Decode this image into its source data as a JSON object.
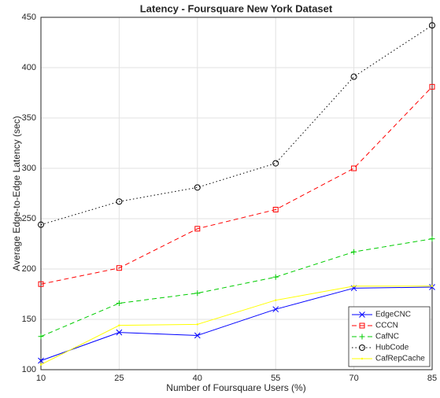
{
  "chart_data": {
    "type": "line",
    "title": "Latency - Foursquare New York Dataset",
    "x_label": "Number of Foursquare Users (%)",
    "y_label": "Average Edge-to-Edge Latency (sec)",
    "x": [
      10,
      25,
      40,
      55,
      70,
      85
    ],
    "series": [
      {
        "name": "EdgeCNC",
        "color": "#0000ff",
        "dash": "solid",
        "marker": "x",
        "values": [
          109,
          137,
          134,
          160,
          181,
          182
        ]
      },
      {
        "name": "CCCN",
        "color": "#ff0000",
        "dash": "dashed",
        "marker": "square",
        "values": [
          185,
          201,
          240,
          259,
          300,
          381
        ]
      },
      {
        "name": "CafNC",
        "color": "#00cc00",
        "dash": "dashed",
        "marker": "plus",
        "values": [
          133,
          166,
          176,
          192,
          217,
          230
        ]
      },
      {
        "name": "HubCode",
        "color": "#000000",
        "dash": "dotted",
        "marker": "circle",
        "values": [
          244,
          267,
          281,
          305,
          391,
          442
        ]
      },
      {
        "name": "CafRepCache",
        "color": "#ffff00",
        "dash": "solid",
        "marker": "dot",
        "values": [
          105,
          144,
          145,
          169,
          183,
          183
        ]
      }
    ],
    "xlim": [
      10,
      85
    ],
    "xticks": [
      10,
      25,
      40,
      55,
      70,
      85
    ],
    "ylim": [
      100,
      450
    ],
    "yticks": [
      100,
      150,
      200,
      250,
      300,
      350,
      400,
      450
    ],
    "grid": true,
    "legend": "lower right"
  }
}
